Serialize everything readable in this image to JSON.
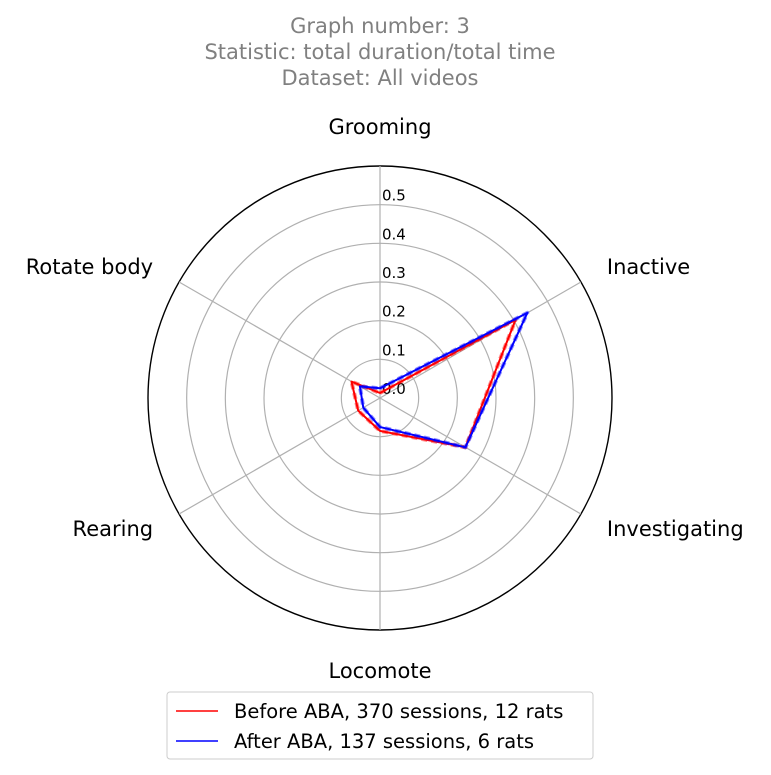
{
  "title_lines": [
    "Graph number: 3",
    "Statistic: total duration/total time",
    "Dataset: All videos"
  ],
  "chart_data": {
    "type": "radar",
    "categories": [
      "Grooming",
      "Inactive",
      "Investigating",
      "Locomote",
      "Rearing",
      "Rotate body"
    ],
    "radial_ticks": [
      "0.0",
      "0.1",
      "0.2",
      "0.3",
      "0.4",
      "0.5"
    ],
    "rlim": [
      0,
      0.6
    ],
    "grid": true,
    "series": [
      {
        "name": "Before ABA, 370 sessions, 12 rats",
        "color": "#ff0000",
        "values": [
          0.013,
          0.405,
          0.255,
          0.085,
          0.065,
          0.085
        ]
      },
      {
        "name": "After ABA, 137 sessions, 6 rats",
        "color": "#0000ff",
        "values": [
          0.025,
          0.44,
          0.255,
          0.075,
          0.05,
          0.06
        ]
      }
    ],
    "legend": "bottom-center"
  }
}
